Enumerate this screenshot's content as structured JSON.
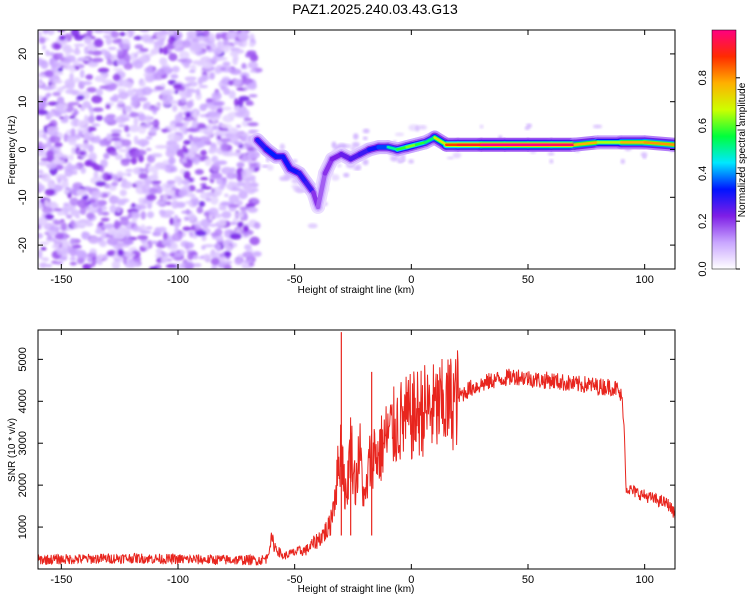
{
  "title": "PAZ1.2025.240.03.43.G13",
  "chart_data": [
    {
      "type": "heatmap",
      "name": "spectrogram",
      "xlabel": "Height of straight line (km)",
      "ylabel": "Frequency (Hz)",
      "xlim": [
        -160,
        113
      ],
      "ylim": [
        -25,
        25
      ],
      "x_ticks": [
        -150,
        -100,
        -50,
        0,
        50,
        100
      ],
      "y_ticks": [
        -20,
        -10,
        0,
        10,
        20
      ],
      "noise_region_x": [
        -160,
        -66
      ],
      "signal_track": {
        "x": [
          -66,
          -62,
          -58,
          -55,
          -52,
          -48,
          -45,
          -42,
          -40,
          -37,
          -34,
          -30,
          -26,
          -22,
          -18,
          -14,
          -10,
          -6,
          -2,
          2,
          6,
          10,
          15,
          20,
          30,
          40,
          50,
          60,
          70,
          80,
          90,
          100,
          113
        ],
        "freq": [
          2,
          0,
          -1.5,
          -1.5,
          -4,
          -5,
          -7,
          -9,
          -12,
          -5,
          -2,
          -1,
          -2,
          -1,
          0,
          0.5,
          0.5,
          0,
          0.5,
          1,
          1.5,
          2.5,
          1,
          1,
          1,
          1,
          1,
          1,
          1,
          1.5,
          1.5,
          1.5,
          1
        ],
        "amp": [
          0.35,
          0.45,
          0.45,
          0.4,
          0.45,
          0.4,
          0.4,
          0.35,
          0.2,
          0.25,
          0.3,
          0.3,
          0.35,
          0.35,
          0.4,
          0.45,
          0.5,
          0.5,
          0.65,
          0.6,
          0.55,
          0.5,
          0.9,
          0.85,
          1.0,
          1.0,
          1.0,
          1.0,
          0.95,
          0.6,
          0.7,
          0.85,
          0.75
        ]
      }
    },
    {
      "type": "line",
      "name": "snr",
      "xlabel": "Height of straight line (km)",
      "ylabel": "SNR (10 * v/v)",
      "xlim": [
        -160,
        113
      ],
      "ylim": [
        0,
        5700
      ],
      "x_ticks": [
        -150,
        -100,
        -50,
        0,
        50,
        100
      ],
      "y_ticks": [
        1000,
        2000,
        3000,
        4000,
        5000
      ],
      "color": "#e8251e",
      "series": {
        "x": [
          -160,
          -140,
          -120,
          -100,
          -80,
          -65,
          -62,
          -60,
          -58,
          -55,
          -50,
          -45,
          -40,
          -35,
          -33,
          -31,
          -30,
          -28,
          -26,
          -24,
          -22,
          -20,
          -18,
          -16,
          -14,
          -12,
          -10,
          -5,
          0,
          5,
          10,
          15,
          20,
          25,
          30,
          35,
          40,
          45,
          50,
          55,
          60,
          65,
          70,
          75,
          80,
          85,
          88,
          90,
          91,
          92,
          95,
          100,
          105,
          110,
          113
        ],
        "y": [
          220,
          240,
          260,
          230,
          220,
          210,
          250,
          700,
          500,
          300,
          400,
          450,
          700,
          1000,
          1700,
          2500,
          3000,
          1600,
          3000,
          2000,
          2800,
          1500,
          2500,
          2800,
          2700,
          3000,
          3200,
          3500,
          3600,
          3800,
          3800,
          3900,
          4100,
          4300,
          4400,
          4500,
          4550,
          4600,
          4550,
          4500,
          4500,
          4450,
          4400,
          4400,
          4350,
          4350,
          4300,
          4100,
          3700,
          1950,
          1850,
          1750,
          1650,
          1550,
          1300
        ]
      },
      "spikes": [
        {
          "x": -30,
          "y": 5650
        },
        {
          "x": -17,
          "y": 4700
        },
        {
          "x": -26,
          "y": 3250
        }
      ]
    }
  ],
  "colorbar": {
    "label": "Normalized spectral amplitude",
    "ticks": [
      "0.0",
      "0.2",
      "0.4",
      "0.6",
      "0.8"
    ],
    "tick_values": [
      0.0,
      0.2,
      0.4,
      0.6,
      0.8
    ],
    "range": [
      0,
      1
    ],
    "colors": [
      "#ffffff",
      "#c9a6ff",
      "#7e1ee6",
      "#0014ff",
      "#00e8ff",
      "#00ff3c",
      "#cdff00",
      "#ffb000",
      "#ff2b00",
      "#ff0080"
    ]
  }
}
